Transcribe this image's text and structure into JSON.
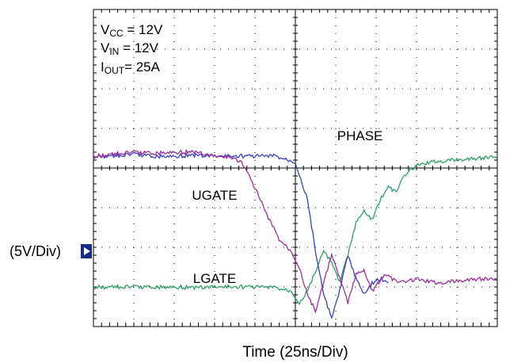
{
  "chart_data": {
    "type": "line",
    "title": "",
    "xlabel": "Time  (25ns/Div)",
    "ylabel": "",
    "scale_label": "(5V/Div)",
    "grid": true,
    "divisions": {
      "x": 10,
      "y": 8
    },
    "xlim": [
      0,
      10
    ],
    "ylim": [
      -4.1,
      3.9
    ],
    "x_unit": "div",
    "y_unit": "div",
    "conditions": [
      {
        "main": "V",
        "sub": "CC",
        "rest": " = 12V"
      },
      {
        "main": "V",
        "sub": "IN",
        "rest": " = 12V"
      },
      {
        "main": "I",
        "sub": "OUT",
        "rest": "= 25A"
      }
    ],
    "trace_labels": [
      {
        "text": "PHASE",
        "x": 6.6,
        "y": 0.6
      },
      {
        "text": "UGATE",
        "x": 3.0,
        "y": -0.9
      },
      {
        "text": "LGATE",
        "x": 3.0,
        "y": -3.0
      }
    ],
    "series": [
      {
        "name": "PHASE",
        "color": "#3a3fbf",
        "x": [
          0,
          0.5,
          1,
          1.5,
          2,
          2.5,
          3,
          3.5,
          4,
          4.5,
          5.0,
          5.3,
          5.5,
          5.7,
          5.9,
          6.1,
          6.3,
          6.5,
          6.7,
          6.9,
          7.1,
          7.3
        ],
        "y": [
          0.2,
          0.2,
          0.25,
          0.2,
          0.2,
          0.22,
          0.2,
          0.2,
          0.2,
          0.2,
          0.05,
          -0.9,
          -2.2,
          -3.3,
          -3.9,
          -3.2,
          -2.3,
          -2.9,
          -3.3,
          -3.0,
          -2.9,
          -3.0
        ]
      },
      {
        "name": "UGATE",
        "color": "#9a2f9a",
        "x": [
          0,
          0.5,
          1,
          1.5,
          2,
          2.5,
          3,
          3.5,
          3.7,
          4.0,
          4.3,
          4.6,
          4.9,
          5.1,
          5.3,
          5.5,
          5.7,
          5.9,
          6.1,
          6.3,
          6.5,
          6.7,
          6.9,
          7.2,
          7.6,
          8,
          8.5,
          9,
          9.5,
          10
        ],
        "y": [
          0.2,
          0.25,
          0.3,
          0.28,
          0.3,
          0.3,
          0.2,
          0.15,
          0.0,
          -0.6,
          -1.3,
          -1.9,
          -2.2,
          -2.6,
          -3.3,
          -3.7,
          -3.0,
          -2.3,
          -2.9,
          -3.5,
          -2.8,
          -2.7,
          -3.2,
          -2.8,
          -3.0,
          -2.9,
          -3.0,
          -2.95,
          -2.9,
          -2.9
        ]
      },
      {
        "name": "LGATE",
        "color": "#2e9e6a",
        "x": [
          0,
          0.5,
          1,
          1.5,
          2,
          2.5,
          3,
          3.5,
          4,
          4.5,
          4.9,
          5.1,
          5.3,
          5.5,
          5.7,
          5.9,
          6.1,
          6.3,
          6.5,
          6.7,
          6.9,
          7.1,
          7.3,
          7.5,
          7.7,
          7.9,
          8.1,
          8.4,
          8.8,
          9.2,
          9.6,
          10
        ],
        "y": [
          -3.1,
          -3.1,
          -3.1,
          -3.1,
          -3.1,
          -3.12,
          -3.1,
          -3.1,
          -3.1,
          -3.12,
          -3.2,
          -3.5,
          -3.2,
          -2.7,
          -2.2,
          -2.5,
          -3.0,
          -2.3,
          -1.5,
          -1.2,
          -1.4,
          -0.9,
          -0.6,
          -0.7,
          -0.3,
          -0.1,
          0.0,
          0.05,
          0.1,
          0.12,
          0.15,
          0.2
        ]
      }
    ]
  }
}
